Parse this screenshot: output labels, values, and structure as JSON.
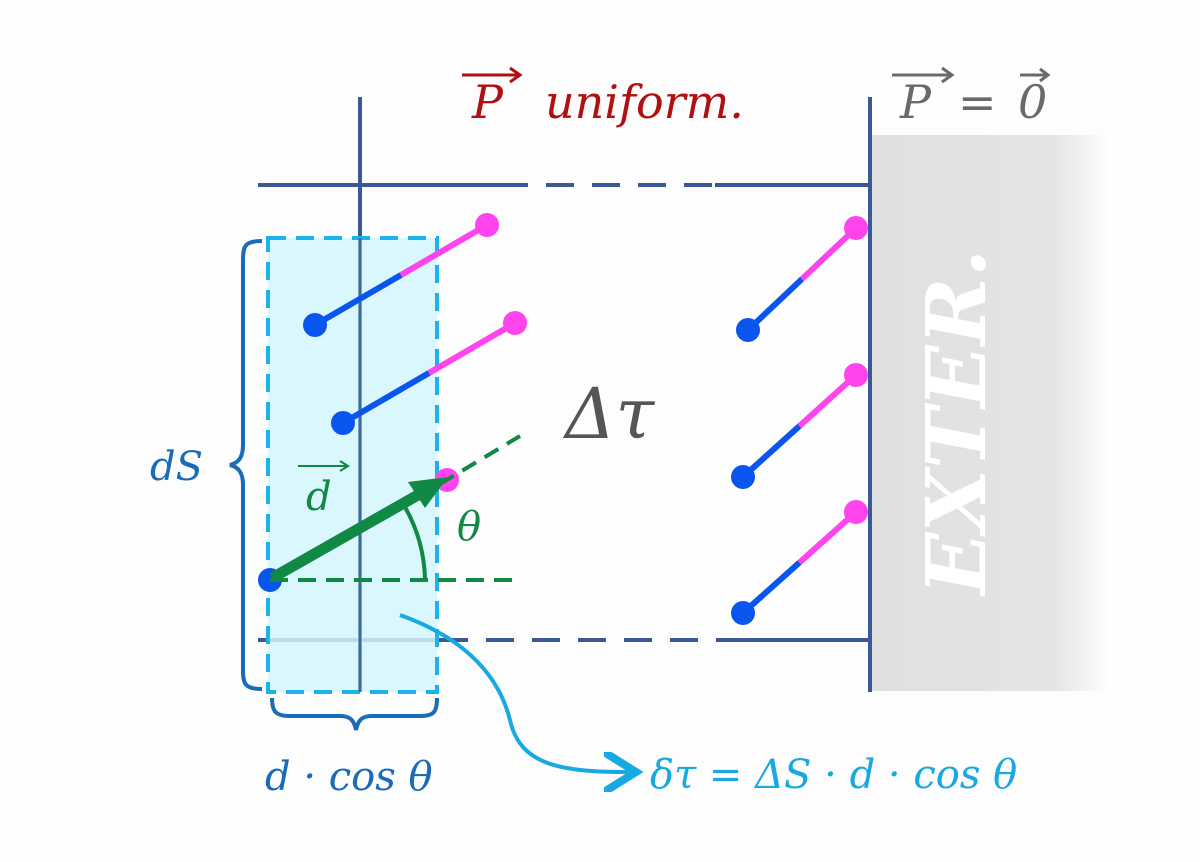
{
  "title": {
    "vector": "P",
    "text": "uniform.",
    "color": "#b01010"
  },
  "exterior_condition": {
    "lhs": "P",
    "eq": "=",
    "rhs": "0",
    "color": "#6a6a6a"
  },
  "exterior_label": "EXTER.",
  "volume_label": "Δτ",
  "surface_label": "dS",
  "dipole_vector_label": "d",
  "angle_label": "θ",
  "width_label": "d · cos θ",
  "formula": "δτ = ΔS · d · cos θ",
  "colors": {
    "boundary": "#3a5a96",
    "cylinder_fill": "#d2f6fb",
    "cylinder_border": "#1ab4ea",
    "brace": "#1a6bb8",
    "dipole_negative": "#0a55ee",
    "dipole_positive": "#ff44ee",
    "dipole_vector": "#118844",
    "formula": "#19a9e2",
    "exterior": "#e2e2e2"
  }
}
